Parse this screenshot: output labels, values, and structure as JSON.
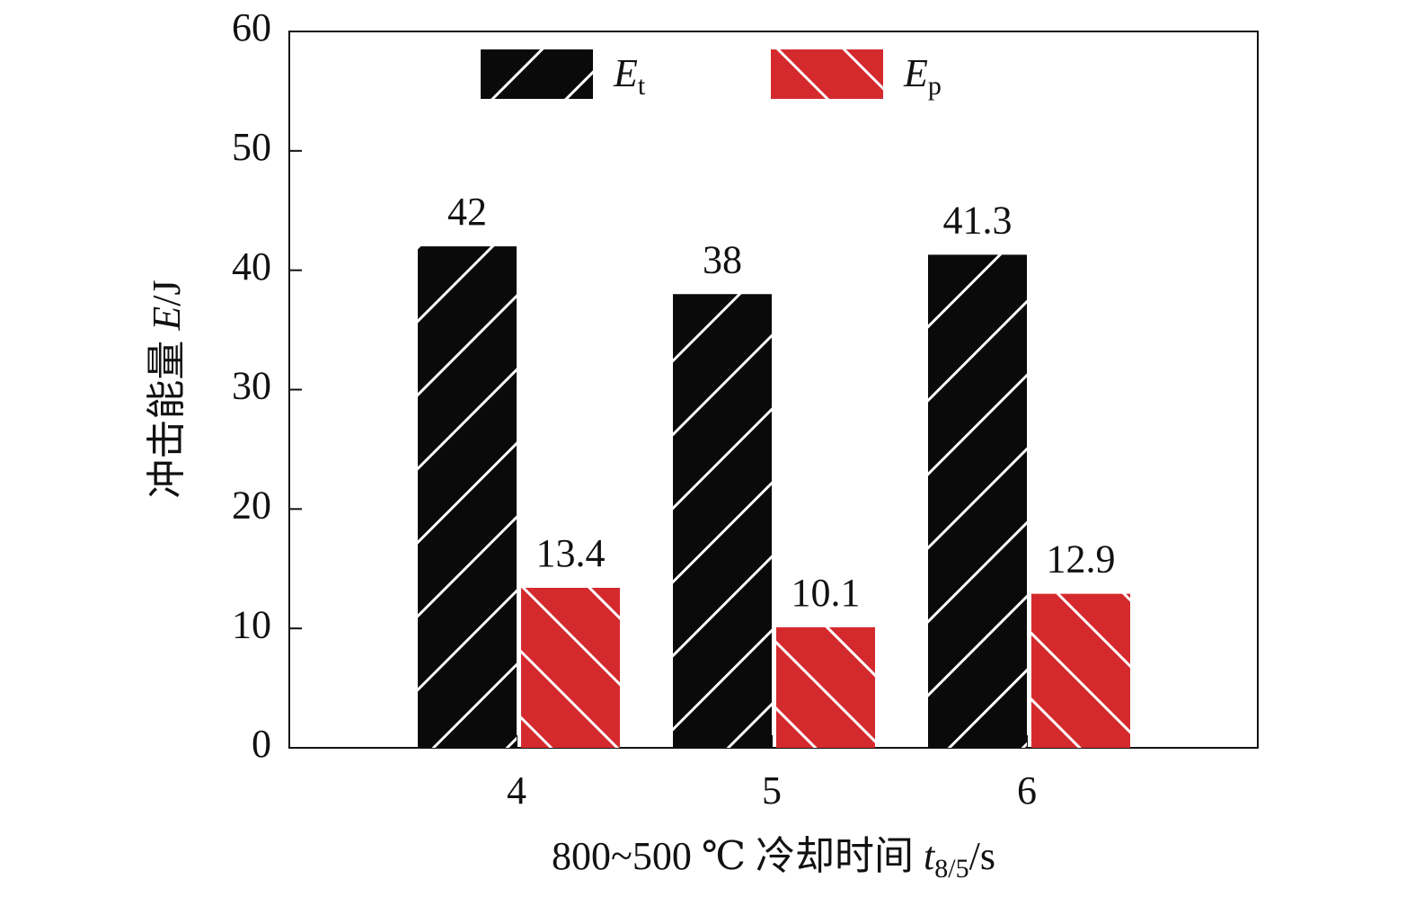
{
  "chart_data": {
    "type": "bar",
    "xlabel": "800~500 ℃ 冷却时间 t8/5/s",
    "ylabel": "冲击能量 E/J",
    "categories": [
      "4",
      "5",
      "6"
    ],
    "series": [
      {
        "name": "Et",
        "color": "#0a0a0a",
        "values": [
          42,
          38,
          41.3
        ]
      },
      {
        "name": "Ep",
        "color": "#d42a2e",
        "values": [
          13.4,
          10.1,
          12.9
        ]
      }
    ],
    "ylim": [
      0,
      60
    ],
    "yticks": [
      0,
      10,
      20,
      30,
      40,
      50,
      60
    ],
    "legend": "top"
  }
}
